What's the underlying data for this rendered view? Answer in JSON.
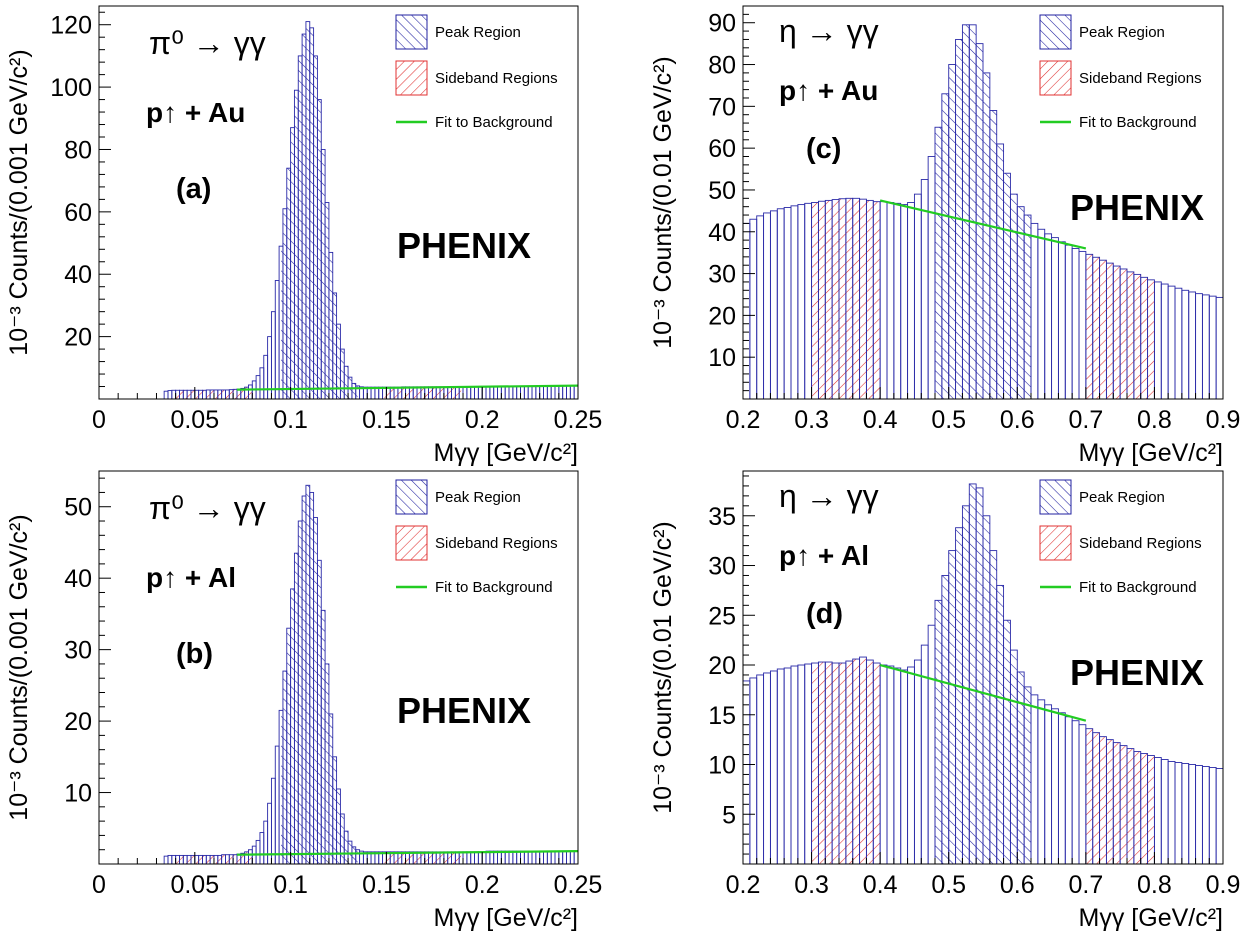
{
  "figure": {
    "legend": {
      "peak": "Peak Region",
      "sideband": "Sideband Regions",
      "fit": "Fit to Background"
    },
    "experiment": "PHENIX",
    "colors": {
      "peak": "#2020a0",
      "sideband": "#e03030",
      "fit": "#22cc22",
      "hist": "#2a2aa8",
      "axis": "#000000"
    }
  },
  "chart_data": [
    {
      "type": "bar",
      "panel_label": "(a)",
      "decay": "π⁰ → γγ",
      "system": "p↑ + Au",
      "xlabel": "Mγγ [GeV/c²]",
      "ylabel": "10⁻³ Counts/(0.001 GeV/c²)",
      "xlim": [
        0,
        0.25
      ],
      "ylim": [
        0,
        126
      ],
      "xticks": [
        0,
        0.05,
        0.1,
        0.15,
        0.2,
        0.25
      ],
      "yticks": [
        20,
        40,
        60,
        80,
        100,
        120
      ],
      "peak_region": [
        0.095,
        0.135
      ],
      "sideband_regions": [
        [
          0.04,
          0.08
        ],
        [
          0.149,
          0.189
        ]
      ],
      "background_fit": {
        "x": [
          0.072,
          0.25
        ],
        "y": [
          3.0,
          4.3
        ]
      },
      "histogram": {
        "bin_width": 0.002,
        "x": [
          0.035,
          0.037,
          0.039,
          0.041,
          0.043,
          0.045,
          0.047,
          0.049,
          0.051,
          0.053,
          0.055,
          0.057,
          0.059,
          0.061,
          0.063,
          0.065,
          0.067,
          0.069,
          0.071,
          0.073,
          0.075,
          0.077,
          0.079,
          0.081,
          0.083,
          0.085,
          0.087,
          0.089,
          0.091,
          0.093,
          0.095,
          0.097,
          0.099,
          0.101,
          0.103,
          0.105,
          0.107,
          0.109,
          0.111,
          0.113,
          0.115,
          0.117,
          0.119,
          0.121,
          0.123,
          0.125,
          0.127,
          0.129,
          0.131,
          0.133,
          0.135,
          0.137,
          0.139,
          0.141,
          0.143,
          0.145,
          0.147,
          0.149,
          0.151,
          0.153,
          0.155,
          0.157,
          0.159,
          0.161,
          0.163,
          0.165,
          0.167,
          0.169,
          0.171,
          0.173,
          0.175,
          0.177,
          0.179,
          0.181,
          0.183,
          0.185,
          0.187,
          0.189,
          0.191,
          0.193,
          0.195,
          0.197,
          0.199,
          0.201,
          0.203,
          0.205,
          0.207,
          0.209,
          0.211,
          0.213,
          0.215,
          0.217,
          0.219,
          0.221,
          0.223,
          0.225,
          0.227,
          0.229,
          0.231,
          0.233,
          0.235,
          0.237,
          0.239,
          0.241,
          0.243,
          0.245,
          0.247,
          0.249
        ],
        "y": [
          2.5,
          2.7,
          2.8,
          2.8,
          2.8,
          2.8,
          2.8,
          2.8,
          2.8,
          2.8,
          2.8,
          2.9,
          2.9,
          2.9,
          2.9,
          2.9,
          2.9,
          3.0,
          3.1,
          3.2,
          3.4,
          3.8,
          4.5,
          5.8,
          7.5,
          10.0,
          14.0,
          20.0,
          28.0,
          38.0,
          49.0,
          61.0,
          74.0,
          87.0,
          99.0,
          110.0,
          117.0,
          121.0,
          119.0,
          110.0,
          96.0,
          80.0,
          63.0,
          47.0,
          34.0,
          24.0,
          16.0,
          10.5,
          7.0,
          5.0,
          4.2,
          3.9,
          3.8,
          3.8,
          3.8,
          3.8,
          3.8,
          3.8,
          3.8,
          3.8,
          3.8,
          3.8,
          3.9,
          3.9,
          3.9,
          3.9,
          3.9,
          3.9,
          3.9,
          3.9,
          3.9,
          3.9,
          3.9,
          3.9,
          3.9,
          3.9,
          3.9,
          4.0,
          4.0,
          4.0,
          4.0,
          4.0,
          4.0,
          4.0,
          4.0,
          4.0,
          4.0,
          4.0,
          4.0,
          4.0,
          4.0,
          4.1,
          4.1,
          4.1,
          4.1,
          4.1,
          4.1,
          4.1,
          4.2,
          4.2,
          4.2,
          4.2,
          4.2,
          4.2,
          4.2,
          4.3,
          4.3,
          4.3
        ]
      }
    },
    {
      "type": "bar",
      "panel_label": "(c)",
      "decay": "η → γγ",
      "system": "p↑ + Au",
      "xlabel": "Mγγ [GeV/c²]",
      "ylabel": "10⁻³ Counts/(0.01 GeV/c²)",
      "xlim": [
        0.2,
        0.9
      ],
      "ylim": [
        0,
        94
      ],
      "xticks": [
        0.2,
        0.3,
        0.4,
        0.5,
        0.6,
        0.7,
        0.8,
        0.9
      ],
      "yticks": [
        10,
        20,
        30,
        40,
        50,
        60,
        70,
        80,
        90
      ],
      "peak_region": [
        0.48,
        0.62
      ],
      "sideband_regions": [
        [
          0.3,
          0.4
        ],
        [
          0.7,
          0.8
        ]
      ],
      "background_fit": {
        "x": [
          0.4,
          0.7
        ],
        "y": [
          47.5,
          36.0
        ]
      },
      "histogram": {
        "bin_width": 0.01,
        "x": [
          0.205,
          0.215,
          0.225,
          0.235,
          0.245,
          0.255,
          0.265,
          0.275,
          0.285,
          0.295,
          0.305,
          0.315,
          0.325,
          0.335,
          0.345,
          0.355,
          0.365,
          0.375,
          0.385,
          0.395,
          0.405,
          0.415,
          0.425,
          0.435,
          0.445,
          0.455,
          0.465,
          0.475,
          0.485,
          0.495,
          0.505,
          0.515,
          0.525,
          0.535,
          0.545,
          0.555,
          0.565,
          0.575,
          0.585,
          0.595,
          0.605,
          0.615,
          0.625,
          0.635,
          0.645,
          0.655,
          0.665,
          0.675,
          0.685,
          0.695,
          0.705,
          0.715,
          0.725,
          0.735,
          0.745,
          0.755,
          0.765,
          0.775,
          0.785,
          0.795,
          0.805,
          0.815,
          0.825,
          0.835,
          0.845,
          0.855,
          0.865,
          0.875,
          0.885,
          0.895
        ],
        "y": [
          42.0,
          43.0,
          43.8,
          44.5,
          45.0,
          45.5,
          45.8,
          46.2,
          46.5,
          46.8,
          47.0,
          47.3,
          47.5,
          47.7,
          47.9,
          48.0,
          48.0,
          47.8,
          47.5,
          47.2,
          47.2,
          47.0,
          46.8,
          46.5,
          47.0,
          49.0,
          52.5,
          58.0,
          65.0,
          73.0,
          80.0,
          86.0,
          89.5,
          89.5,
          85.0,
          78.0,
          69.0,
          61.0,
          54.0,
          49.0,
          46.0,
          44.0,
          42.0,
          40.6,
          39.5,
          38.6,
          37.6,
          36.8,
          36.0,
          35.3,
          34.6,
          33.9,
          33.2,
          32.5,
          31.8,
          31.1,
          30.4,
          29.8,
          29.1,
          28.5,
          28.0,
          27.5,
          27.0,
          26.5,
          26.0,
          25.6,
          25.2,
          24.9,
          24.6,
          24.3
        ]
      }
    },
    {
      "type": "bar",
      "panel_label": "(b)",
      "decay": "π⁰ → γγ",
      "system": "p↑ + Al",
      "xlabel": "Mγγ [GeV/c²]",
      "ylabel": "10⁻³ Counts/(0.001 GeV/c²)",
      "xlim": [
        0,
        0.25
      ],
      "ylim": [
        0,
        55
      ],
      "xticks": [
        0,
        0.05,
        0.1,
        0.15,
        0.2,
        0.25
      ],
      "yticks": [
        10,
        20,
        30,
        40,
        50
      ],
      "peak_region": [
        0.095,
        0.135
      ],
      "sideband_regions": [
        [
          0.04,
          0.08
        ],
        [
          0.149,
          0.189
        ]
      ],
      "background_fit": {
        "x": [
          0.072,
          0.25
        ],
        "y": [
          1.3,
          1.8
        ]
      },
      "histogram": {
        "bin_width": 0.002,
        "x": [
          0.035,
          0.037,
          0.039,
          0.041,
          0.043,
          0.045,
          0.047,
          0.049,
          0.051,
          0.053,
          0.055,
          0.057,
          0.059,
          0.061,
          0.063,
          0.065,
          0.067,
          0.069,
          0.071,
          0.073,
          0.075,
          0.077,
          0.079,
          0.081,
          0.083,
          0.085,
          0.087,
          0.089,
          0.091,
          0.093,
          0.095,
          0.097,
          0.099,
          0.101,
          0.103,
          0.105,
          0.107,
          0.109,
          0.111,
          0.113,
          0.115,
          0.117,
          0.119,
          0.121,
          0.123,
          0.125,
          0.127,
          0.129,
          0.131,
          0.133,
          0.135,
          0.137,
          0.139,
          0.141,
          0.143,
          0.145,
          0.147,
          0.149,
          0.151,
          0.153,
          0.155,
          0.157,
          0.159,
          0.161,
          0.163,
          0.165,
          0.167,
          0.169,
          0.171,
          0.173,
          0.175,
          0.177,
          0.179,
          0.181,
          0.183,
          0.185,
          0.187,
          0.189,
          0.191,
          0.193,
          0.195,
          0.197,
          0.199,
          0.201,
          0.203,
          0.205,
          0.207,
          0.209,
          0.211,
          0.213,
          0.215,
          0.217,
          0.219,
          0.221,
          0.223,
          0.225,
          0.227,
          0.229,
          0.231,
          0.233,
          0.235,
          0.237,
          0.239,
          0.241,
          0.243,
          0.245,
          0.247,
          0.249
        ],
        "y": [
          1.1,
          1.2,
          1.2,
          1.2,
          1.2,
          1.2,
          1.2,
          1.2,
          1.2,
          1.2,
          1.2,
          1.2,
          1.2,
          1.2,
          1.2,
          1.3,
          1.3,
          1.3,
          1.3,
          1.4,
          1.5,
          1.7,
          2.0,
          2.5,
          3.3,
          4.4,
          6.0,
          8.5,
          12.0,
          16.5,
          21.5,
          27.0,
          33.0,
          38.5,
          43.5,
          48.0,
          51.5,
          53.0,
          52.0,
          48.5,
          42.5,
          35.5,
          28.0,
          21.0,
          15.0,
          10.5,
          7.0,
          4.6,
          3.2,
          2.4,
          2.0,
          1.8,
          1.7,
          1.7,
          1.7,
          1.7,
          1.7,
          1.7,
          1.7,
          1.7,
          1.7,
          1.7,
          1.7,
          1.7,
          1.7,
          1.7,
          1.7,
          1.7,
          1.7,
          1.7,
          1.7,
          1.7,
          1.7,
          1.7,
          1.7,
          1.7,
          1.7,
          1.7,
          1.7,
          1.7,
          1.7,
          1.7,
          1.7,
          1.7,
          1.8,
          1.8,
          1.8,
          1.8,
          1.8,
          1.8,
          1.8,
          1.8,
          1.8,
          1.8,
          1.8,
          1.8,
          1.8,
          1.8,
          1.8,
          1.8,
          1.8,
          1.8,
          1.8,
          1.8,
          1.8,
          1.8,
          1.8,
          1.8
        ]
      }
    },
    {
      "type": "bar",
      "panel_label": "(d)",
      "decay": "η → γγ",
      "system": "p↑ + Al",
      "xlabel": "Mγγ [GeV/c²]",
      "ylabel": "10⁻³ Counts/(0.01 GeV/c²)",
      "xlim": [
        0.2,
        0.9
      ],
      "ylim": [
        0,
        39.5
      ],
      "xticks": [
        0.2,
        0.3,
        0.4,
        0.5,
        0.6,
        0.7,
        0.8,
        0.9
      ],
      "yticks": [
        5,
        10,
        15,
        20,
        25,
        30,
        35
      ],
      "peak_region": [
        0.48,
        0.62
      ],
      "sideband_regions": [
        [
          0.3,
          0.4
        ],
        [
          0.7,
          0.8
        ]
      ],
      "background_fit": {
        "x": [
          0.4,
          0.7
        ],
        "y": [
          20.0,
          14.4
        ]
      },
      "histogram": {
        "bin_width": 0.01,
        "x": [
          0.205,
          0.215,
          0.225,
          0.235,
          0.245,
          0.255,
          0.265,
          0.275,
          0.285,
          0.295,
          0.305,
          0.315,
          0.325,
          0.335,
          0.345,
          0.355,
          0.365,
          0.375,
          0.385,
          0.395,
          0.405,
          0.415,
          0.425,
          0.435,
          0.445,
          0.455,
          0.465,
          0.475,
          0.485,
          0.495,
          0.505,
          0.515,
          0.525,
          0.535,
          0.545,
          0.555,
          0.565,
          0.575,
          0.585,
          0.595,
          0.605,
          0.615,
          0.625,
          0.635,
          0.645,
          0.655,
          0.665,
          0.675,
          0.685,
          0.695,
          0.705,
          0.715,
          0.725,
          0.735,
          0.745,
          0.755,
          0.765,
          0.775,
          0.785,
          0.795,
          0.805,
          0.815,
          0.825,
          0.835,
          0.845,
          0.855,
          0.865,
          0.875,
          0.885,
          0.895
        ],
        "y": [
          18.4,
          18.7,
          19.0,
          19.2,
          19.4,
          19.6,
          19.7,
          19.9,
          20.0,
          20.1,
          20.2,
          20.3,
          20.3,
          20.2,
          20.2,
          20.4,
          20.6,
          20.8,
          20.5,
          20.2,
          20.0,
          19.9,
          19.7,
          19.5,
          19.8,
          20.5,
          22.0,
          24.0,
          26.5,
          29.0,
          31.5,
          33.8,
          36.0,
          38.2,
          37.8,
          35.0,
          31.5,
          28.0,
          24.5,
          21.5,
          19.3,
          17.8,
          17.0,
          16.5,
          16.0,
          15.6,
          15.2,
          14.8,
          14.4,
          14.0,
          13.6,
          13.2,
          12.8,
          12.5,
          12.2,
          11.9,
          11.6,
          11.3,
          11.1,
          10.9,
          10.7,
          10.5,
          10.3,
          10.2,
          10.1,
          10.0,
          9.9,
          9.8,
          9.7,
          9.6
        ]
      }
    }
  ]
}
